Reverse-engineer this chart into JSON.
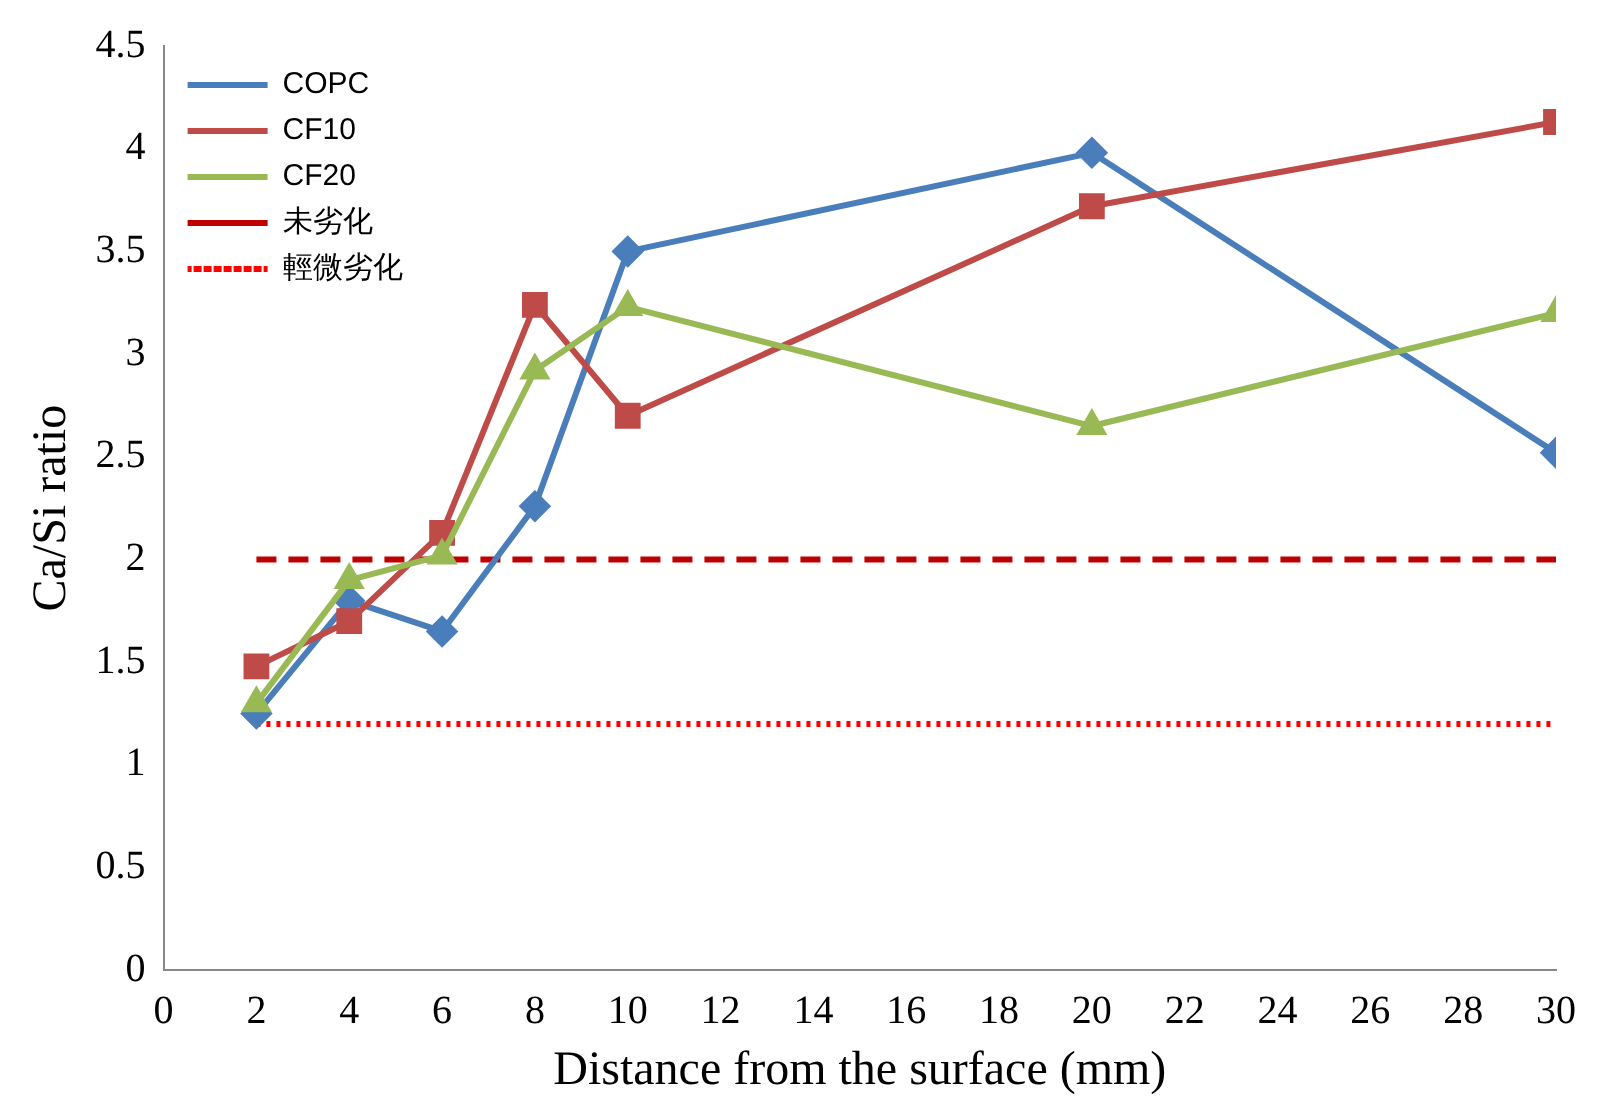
{
  "chart_data": {
    "type": "line",
    "xlabel": "Distance from the surface (mm)",
    "ylabel": "Ca/Si ratio",
    "x": [
      2,
      4,
      6,
      8,
      10,
      20,
      30
    ],
    "series": [
      {
        "name": "COPC",
        "color": "#4a7ebb",
        "marker": "diamond",
        "values": [
          1.25,
          1.8,
          1.65,
          2.26,
          3.5,
          3.98,
          2.52
        ]
      },
      {
        "name": "CF10",
        "color": "#be4b48",
        "marker": "square",
        "values": [
          1.48,
          1.7,
          2.13,
          3.24,
          2.7,
          3.72,
          4.13
        ]
      },
      {
        "name": "CF20",
        "color": "#98b954",
        "marker": "triangle",
        "values": [
          1.3,
          1.9,
          2.02,
          2.92,
          3.23,
          2.65,
          3.2
        ]
      }
    ],
    "ref_lines": [
      {
        "axis": "y",
        "value": 2,
        "label": "未劣化",
        "color": "#c00000",
        "line_style": "dashed"
      },
      {
        "axis": "y",
        "value": 1.2,
        "label": "輕微劣化",
        "color": "#ff0000",
        "line_style": "dotted"
      }
    ],
    "xlim": [
      0,
      30
    ],
    "xticks": [
      0,
      2,
      4,
      6,
      8,
      10,
      12,
      14,
      16,
      18,
      20,
      22,
      24,
      26,
      28,
      30
    ],
    "ylim": [
      0,
      4.5
    ],
    "yticks": [
      0,
      0.5,
      1,
      1.5,
      2,
      2.5,
      3,
      3.5,
      4,
      4.5
    ],
    "grid": false,
    "legend": "top left",
    "line_style": "solid"
  }
}
